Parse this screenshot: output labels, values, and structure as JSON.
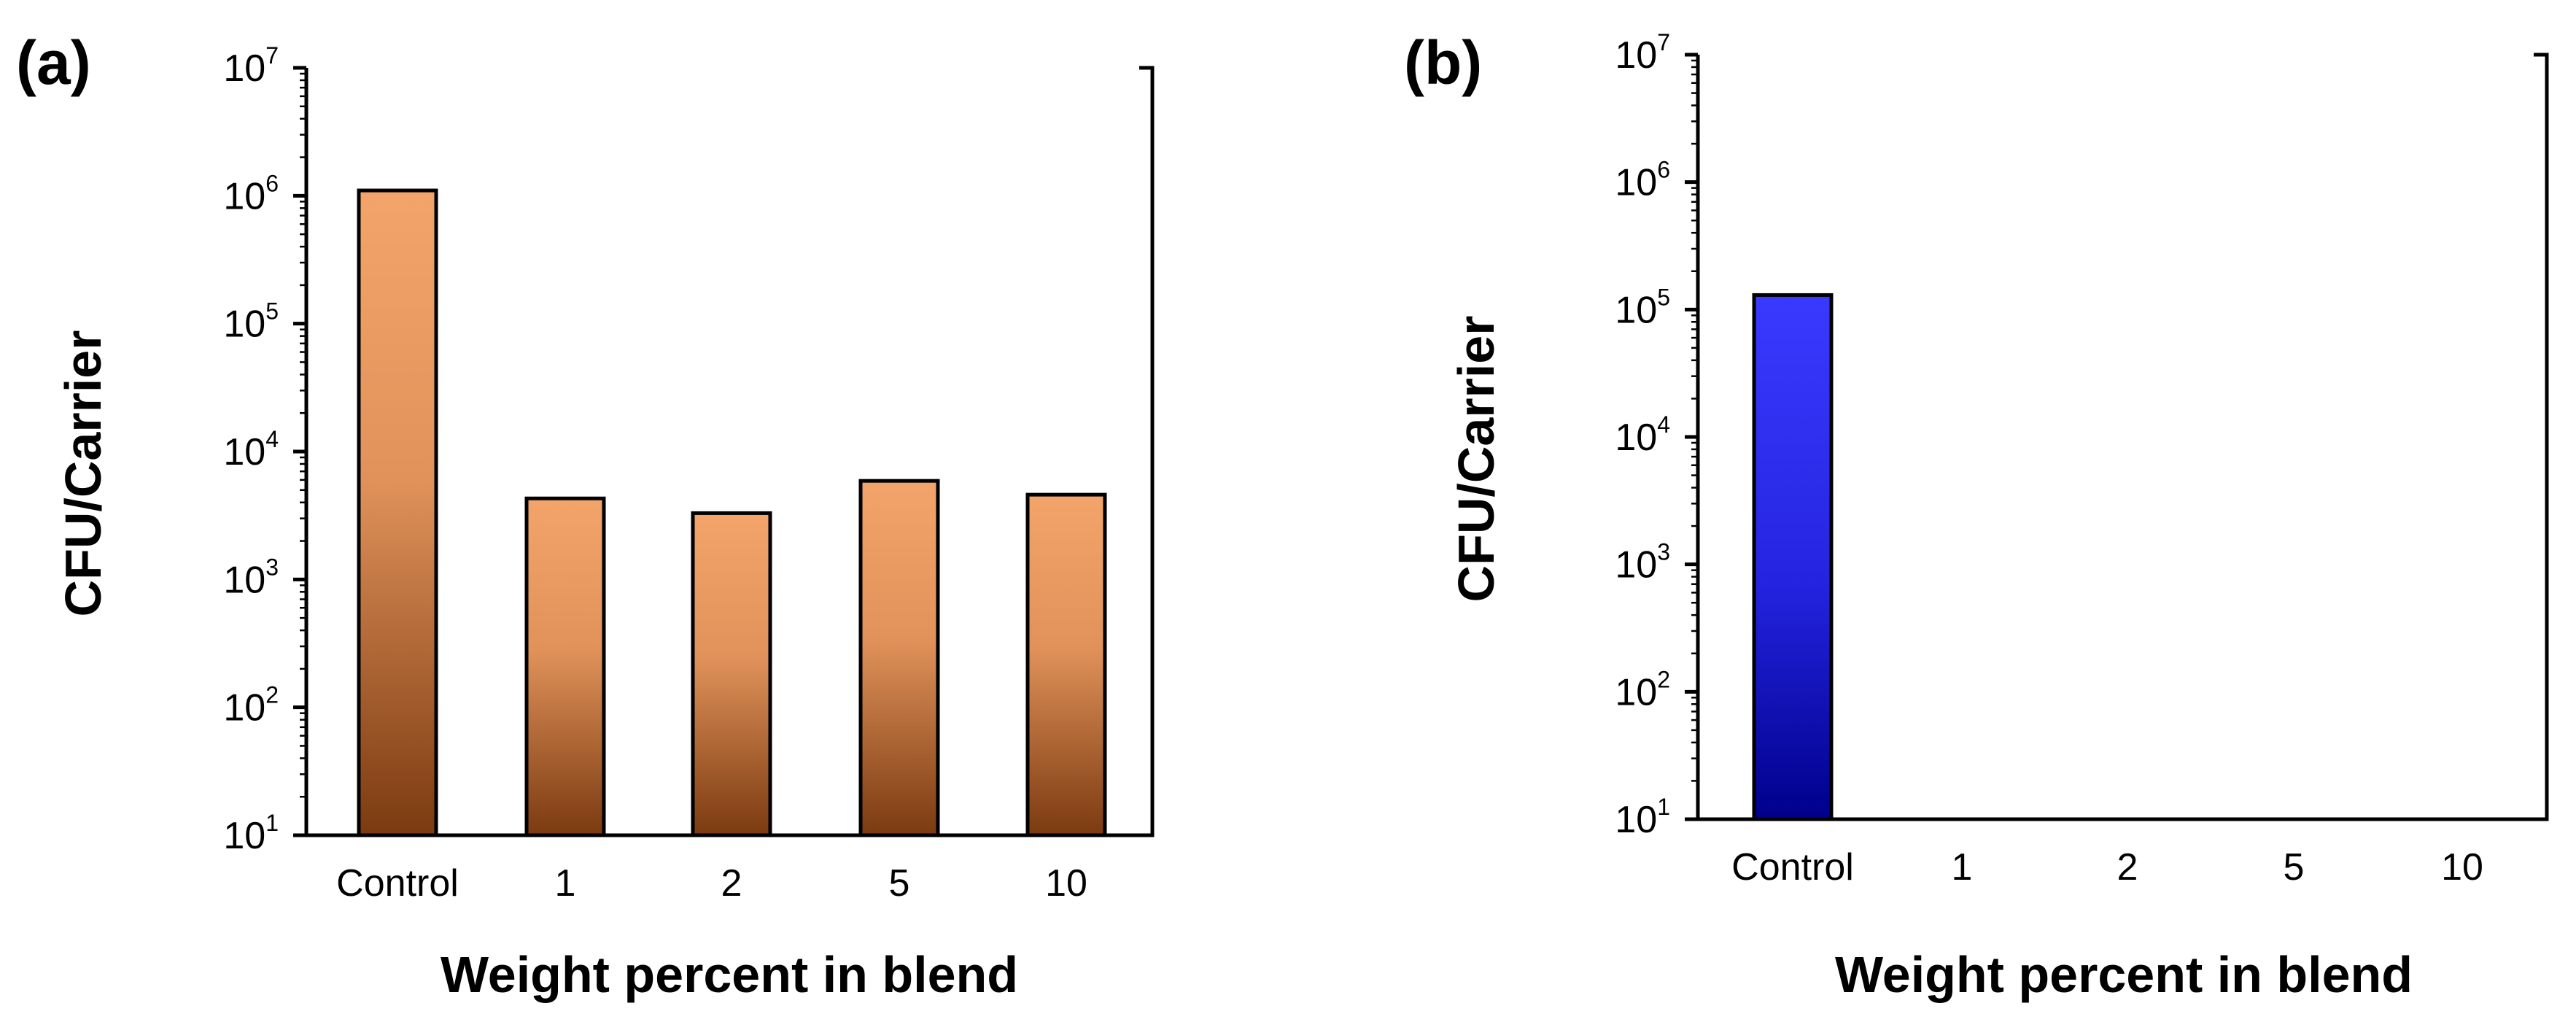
{
  "colors": {
    "copper_top": "#F2A46A",
    "copper_bottom": "#7B3A10",
    "blue_top": "#3A3AFF",
    "blue_bottom": "#00008B"
  },
  "chart_data": [
    {
      "panel": "(a)",
      "type": "bar",
      "yscale": "log",
      "title": "",
      "xlabel": "Weight percent in blend",
      "ylabel": "CFU/Carrier",
      "categories": [
        "Control",
        "1",
        "2",
        "5",
        "10"
      ],
      "values": [
        1100000,
        4300,
        3300,
        5900,
        4600
      ],
      "ylim": [
        10,
        10000000
      ],
      "yticks": [
        {
          "base": "10",
          "exp": "1"
        },
        {
          "base": "10",
          "exp": "2"
        },
        {
          "base": "10",
          "exp": "3"
        },
        {
          "base": "10",
          "exp": "4"
        },
        {
          "base": "10",
          "exp": "5"
        },
        {
          "base": "10",
          "exp": "6"
        },
        {
          "base": "10",
          "exp": "7"
        }
      ],
      "fill": "copper",
      "grid": false,
      "legend": "none"
    },
    {
      "panel": "(b)",
      "type": "bar",
      "yscale": "log",
      "title": "",
      "xlabel": "Weight percent in blend",
      "ylabel": "CFU/Carrier",
      "categories": [
        "Control",
        "1",
        "2",
        "5",
        "10"
      ],
      "values": [
        130000,
        null,
        null,
        null,
        null
      ],
      "ylim": [
        10,
        10000000
      ],
      "yticks": [
        {
          "base": "10",
          "exp": "1"
        },
        {
          "base": "10",
          "exp": "2"
        },
        {
          "base": "10",
          "exp": "3"
        },
        {
          "base": "10",
          "exp": "4"
        },
        {
          "base": "10",
          "exp": "5"
        },
        {
          "base": "10",
          "exp": "6"
        },
        {
          "base": "10",
          "exp": "7"
        }
      ],
      "fill": "blue",
      "grid": false,
      "legend": "none"
    }
  ]
}
